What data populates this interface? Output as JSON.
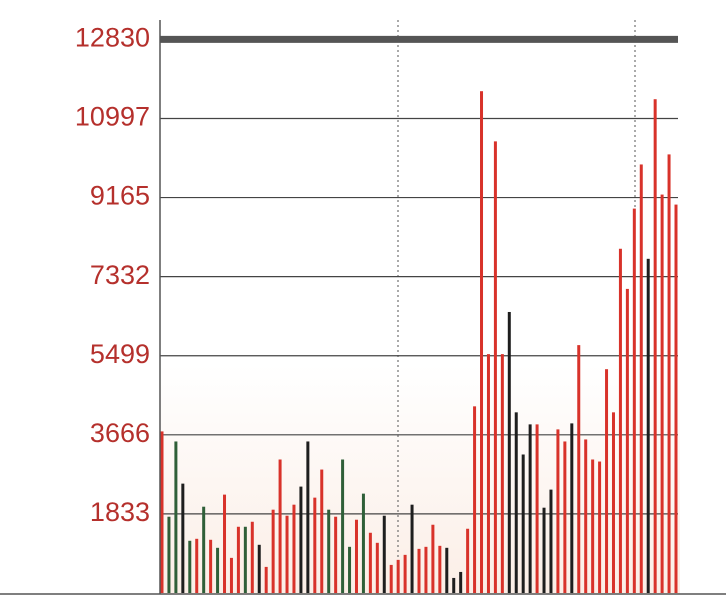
{
  "chart_data": {
    "type": "bar",
    "values": [
      3745,
      1768,
      3512,
      2535,
      1210,
      1256,
      2000,
      1233,
      1047,
      2280,
      814,
      1535,
      1535,
      1651,
      1117,
      605,
      1931,
      3094,
      1791,
      2047,
      2466,
      3512,
      2210,
      2861,
      1931,
      1768,
      3094,
      1070,
      1698,
      2303,
      1396,
      1163,
      1791,
      651,
      768,
      884,
      2047,
      1023,
      1070,
      1582,
      1093,
      1047,
      349,
      488,
      1489,
      4326,
      11630,
      5536,
      10467,
      5536,
      6513,
      4187,
      3210,
      3908,
      3908,
      1977,
      2396,
      3792,
      3512,
      3931,
      5745,
      3559,
      3094,
      3047,
      5187,
      4187,
      7978,
      7048,
      8909,
      9932,
      7745,
      11444,
      9234,
      10165,
      9002
    ],
    "colors": [
      "#d8322a",
      "#2f5f38",
      "#2f5f38",
      "#1e1e1e",
      "#2f5f38",
      "#d8322a",
      "#2f5f38",
      "#d8322a",
      "#2f5f38",
      "#d8322a",
      "#d8322a",
      "#d8322a",
      "#2f5f38",
      "#d8322a",
      "#1e1e1e",
      "#d8322a",
      "#d8322a",
      "#d8322a",
      "#d8322a",
      "#d8322a",
      "#1e1e1e",
      "#1e1e1e",
      "#d8322a",
      "#d8322a",
      "#2f5f38",
      "#d8322a",
      "#2f5f38",
      "#2f5f38",
      "#d8322a",
      "#2f5f38",
      "#d8322a",
      "#d8322a",
      "#1e1e1e",
      "#d8322a",
      "#d8322a",
      "#d8322a",
      "#1e1e1e",
      "#d8322a",
      "#d8322a",
      "#d8322a",
      "#d8322a",
      "#1e1e1e",
      "#1e1e1e",
      "#1e1e1e",
      "#d8322a",
      "#d8322a",
      "#d8322a",
      "#d8322a",
      "#d8322a",
      "#d8322a",
      "#1e1e1e",
      "#1e1e1e",
      "#1e1e1e",
      "#1e1e1e",
      "#d8322a",
      "#1e1e1e",
      "#1e1e1e",
      "#d8322a",
      "#d8322a",
      "#1e1e1e",
      "#d8322a",
      "#d8322a",
      "#d8322a",
      "#d8322a",
      "#d8322a",
      "#d8322a",
      "#d8322a",
      "#d8322a",
      "#d8322a",
      "#d8322a",
      "#1e1e1e",
      "#d8322a",
      "#d8322a",
      "#d8322a",
      "#d8322a"
    ],
    "ylim": [
      0,
      13280
    ],
    "yticks": [
      1833,
      3666,
      5499,
      7332,
      9165,
      10997,
      12830
    ],
    "grid": true
  }
}
